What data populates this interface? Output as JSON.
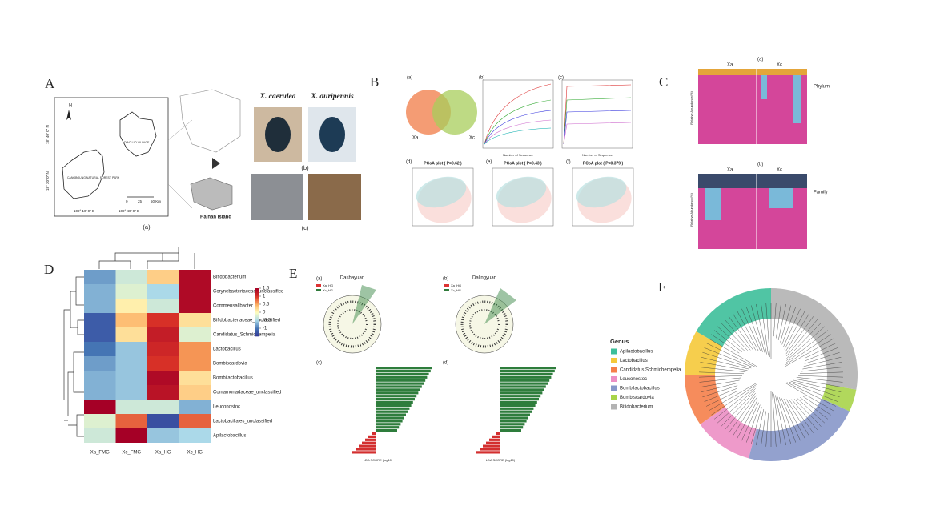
{
  "panel_letters": [
    "A",
    "B",
    "C",
    "D",
    "E",
    "F"
  ],
  "panel_a": {
    "map_labels": [
      "N",
      "CANGBOUNG NATURAL FOREST PARK",
      "DIAOLUO VILLAGE",
      "0",
      "25",
      "50 Km",
      "109° 10' 0\" E",
      "109° 40' 0\" E",
      "18° 40' 0\" N",
      "18° 30' 0\" N",
      "Hainan Island"
    ],
    "species": [
      "X. caerulea",
      "X. auripennis"
    ],
    "sub_labels": [
      "(a)",
      "(b)",
      "(c)"
    ]
  },
  "panel_b": {
    "venn_groups": [
      "Xa",
      "Xc"
    ],
    "sub_labels": [
      "(a)",
      "(b)",
      "(c)",
      "(d)",
      "(e)",
      "(f)"
    ],
    "curve_x_label": "Number of Sequence",
    "pcoa_titles": [
      "PCoA plot ( P=0.62 )",
      "PCoA plot ( P=0.43 )",
      "PCoA plot ( P=0.379 )"
    ]
  },
  "panel_c": {
    "sub_labels": [
      "(a)",
      "(b)"
    ],
    "groups": [
      "Xa",
      "Xc"
    ],
    "y_label": "Relative Abundance(%)",
    "legend_titles": [
      "Phylum",
      "Family"
    ]
  },
  "chart_data": {
    "type": "heatmap",
    "columns": [
      "Xa_FMG",
      "Xc_FMG",
      "Xa_HG",
      "Xc_HG"
    ],
    "rows": [
      "Bifidobacterium",
      "Corynebacteriaceae_unclassified",
      "Commensalibacter",
      "Bifidobacteriaceae_unclassified",
      "Candidatus_Schmidhempelia",
      "Lactobacillus",
      "Bombiscardovia",
      "Bombilactobacillus",
      "Comamonadaceae_unclassified",
      "Leuconostoc",
      "Lactobacillales_unclassified",
      "Apilactobacillus"
    ],
    "values": [
      [
        -0.8,
        -0.3,
        0.3,
        1.4
      ],
      [
        -0.7,
        -0.2,
        -0.5,
        1.4
      ],
      [
        -0.7,
        0.1,
        -0.3,
        1.4
      ],
      [
        -1.2,
        0.4,
        1.0,
        0.2
      ],
      [
        -1.2,
        0.2,
        1.2,
        -0.2
      ],
      [
        -1.0,
        -0.6,
        1.1,
        0.6
      ],
      [
        -0.8,
        -0.6,
        1.0,
        0.6
      ],
      [
        -0.7,
        -0.6,
        1.4,
        0.2
      ],
      [
        -0.7,
        -0.6,
        1.3,
        0.3
      ],
      [
        1.5,
        -0.3,
        -0.3,
        -0.7
      ],
      [
        -0.2,
        0.8,
        -1.3,
        0.8
      ],
      [
        -0.3,
        1.5,
        -0.6,
        -0.5
      ]
    ],
    "clim": [
      -1.5,
      1.5
    ],
    "cticks": [
      1.5,
      1,
      0.5,
      0,
      -0.5,
      -1
    ],
    "colors": [
      "#313695",
      "#4575b4",
      "#abd9e9",
      "#ffffbf",
      "#fdae61",
      "#d73027",
      "#a50026"
    ]
  },
  "panel_e": {
    "sub_labels": [
      "(a)",
      "(b)",
      "(c)",
      "(d)"
    ],
    "cladogram_titles": [
      "Dashayuan",
      "Dalingyuan"
    ],
    "groups": [
      "Xa_HG",
      "Xc_HG"
    ],
    "x_label": "LDA SCORE (log10)"
  },
  "panel_f": {
    "legend_title": "Genus",
    "genera": [
      {
        "name": "Apilactobacillus",
        "color": "#3dbf9a"
      },
      {
        "name": "Lactobacillus",
        "color": "#f5c93a"
      },
      {
        "name": "Candidatus Schmidhempelia",
        "color": "#f57f4a"
      },
      {
        "name": "Leuconostoc",
        "color": "#ec8fc4"
      },
      {
        "name": "Bombilactobacillus",
        "color": "#8797c9"
      },
      {
        "name": "Bombiscardovia",
        "color": "#a8d44a"
      },
      {
        "name": "Bifidobacterium",
        "color": "#b3b3b3"
      }
    ]
  }
}
